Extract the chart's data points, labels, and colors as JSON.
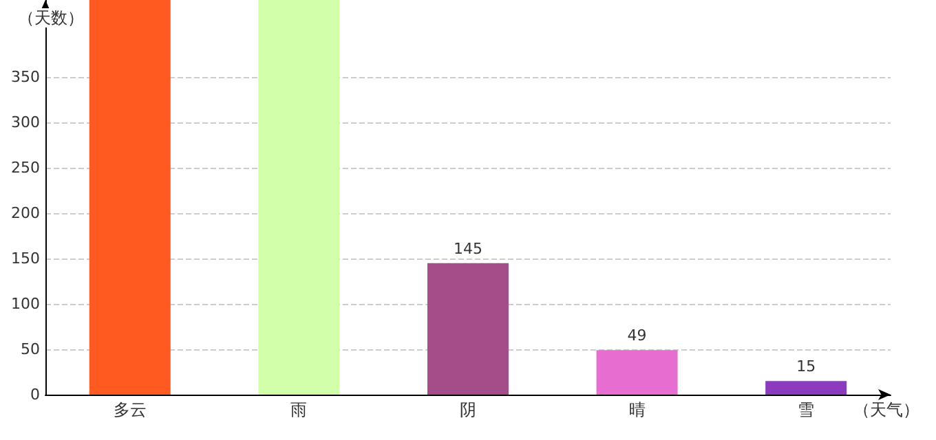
{
  "chart_data": {
    "type": "bar",
    "ylabel": "（天数）",
    "xlabel": "（天气）",
    "categories": [
      "多云",
      "雨",
      "阴",
      "晴",
      "雪"
    ],
    "values": [
      435,
      435,
      145,
      49,
      15
    ],
    "value_labels": [
      null,
      null,
      "145",
      "49",
      "15"
    ],
    "colors": [
      "#ff5a1f",
      "#d2ffaa",
      "#a44d89",
      "#e76dd0",
      "#8c3bbf"
    ],
    "ylim": [
      0,
      435
    ],
    "yticks": [
      0,
      50,
      100,
      150,
      200,
      250,
      300,
      350
    ],
    "grid": "y"
  }
}
